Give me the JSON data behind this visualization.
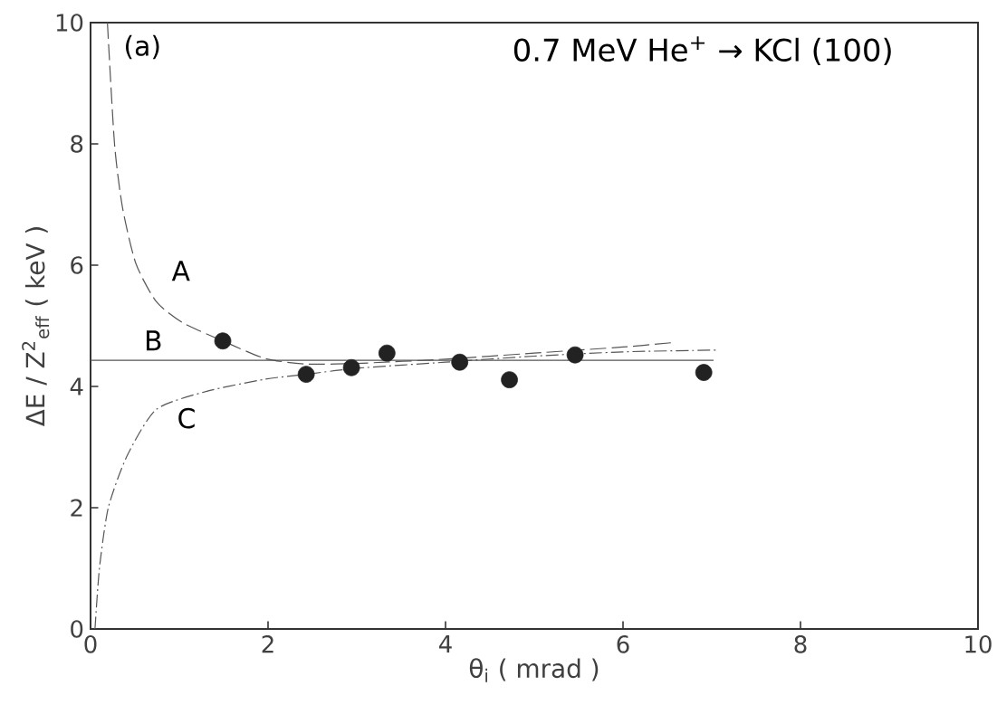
{
  "chart_data": {
    "type": "line",
    "title": "0.7 MeV He$^{+}$ → KCl (100)",
    "xlabel": "θ$_{i}$ ( mrad )",
    "ylabel": "ΔE / Z$^{2}$$_{eff}$ ( keV )",
    "xlim": [
      0,
      10
    ],
    "ylim": [
      0,
      10
    ],
    "xticks": [
      0,
      2,
      4,
      6,
      8,
      10
    ],
    "yticks": [
      0,
      2,
      4,
      6,
      8,
      10
    ],
    "grid": false,
    "annotations": [
      "(a)"
    ],
    "series": [
      {
        "type": "scatter",
        "color": "#222222",
        "marker": "circle",
        "x": [
          1.49,
          2.43,
          2.94,
          3.34,
          4.16,
          4.72,
          5.46,
          6.91
        ],
        "values": [
          4.75,
          4.2,
          4.31,
          4.55,
          4.4,
          4.11,
          4.52,
          4.23
        ]
      },
      {
        "name": "A",
        "color": "#555555",
        "line_style": "dashed",
        "x": [
          0.19,
          0.27,
          0.36,
          0.51,
          0.74,
          1.04,
          1.49,
          1.97,
          2.43,
          3.0,
          4.0,
          5.0,
          6.0,
          6.54
        ],
        "values": [
          10,
          8,
          6.95,
          6.03,
          5.4,
          5.05,
          4.75,
          4.46,
          4.37,
          4.38,
          4.45,
          4.55,
          4.65,
          4.72
        ]
      },
      {
        "name": "B",
        "color": "#555555",
        "line_style": "solid",
        "x": [
          0,
          7.02
        ],
        "values": [
          4.43,
          4.43
        ]
      },
      {
        "name": "C",
        "color": "#555555",
        "line_style": "dashdot",
        "x": [
          0.05,
          0.1,
          0.2,
          0.41,
          0.74,
          1.31,
          1.97,
          2.43,
          3.0,
          4.0,
          5.0,
          6.0,
          7.07
        ],
        "values": [
          0,
          1,
          2,
          2.85,
          3.62,
          3.92,
          4.12,
          4.2,
          4.3,
          4.4,
          4.5,
          4.57,
          4.6
        ]
      }
    ]
  }
}
